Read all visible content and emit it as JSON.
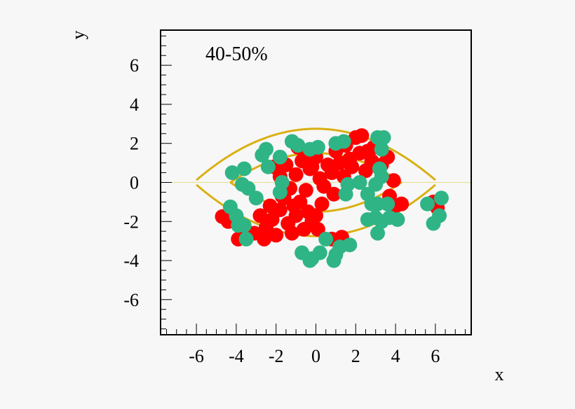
{
  "chart_data": {
    "type": "scatter",
    "annotation": "40-50%",
    "xlabel": "x",
    "ylabel": "y",
    "xlim": [
      -7.8,
      7.8
    ],
    "ylim": [
      -7.8,
      7.8
    ],
    "xticks": [
      -6,
      -4,
      -2,
      0,
      2,
      4,
      6
    ],
    "yticks": [
      -6,
      -4,
      -2,
      0,
      2,
      4,
      6
    ],
    "xtick_labels": [
      "-6",
      "-4",
      "-2",
      "0",
      "2",
      "4",
      "6"
    ],
    "ytick_labels": [
      "-6",
      "-4",
      "-2",
      "0",
      "2",
      "4",
      "6"
    ],
    "grid": false,
    "colors": {
      "red": "#ff0000",
      "green": "#2fb585",
      "curve": "#dab012",
      "baseline": "#e6e08a"
    },
    "series": [
      {
        "color": "#ff0000",
        "points": [
          [
            -4.7,
            -1.75
          ],
          [
            -4.4,
            -2.0
          ],
          [
            -3.9,
            -2.9
          ],
          [
            -3.5,
            -2.5
          ],
          [
            -3.1,
            -2.6
          ],
          [
            -2.8,
            -1.7
          ],
          [
            -2.5,
            -2.3
          ],
          [
            -2.6,
            -2.9
          ],
          [
            -2.2,
            -1.9
          ],
          [
            -2.0,
            -2.7
          ],
          [
            -1.8,
            -1.4
          ],
          [
            -1.6,
            -0.8
          ],
          [
            -1.4,
            -2.1
          ],
          [
            -1.2,
            -2.6
          ],
          [
            -1.0,
            -1.7
          ],
          [
            -0.8,
            -1.0
          ],
          [
            -0.6,
            -2.4
          ],
          [
            -0.4,
            -1.5
          ],
          [
            -0.2,
            -2.0
          ],
          [
            0.0,
            -1.7
          ],
          [
            0.1,
            -2.4
          ],
          [
            -1.8,
            0.3
          ],
          [
            -1.5,
            0.9
          ],
          [
            -1.3,
            -0.3
          ],
          [
            -1.0,
            0.4
          ],
          [
            -0.7,
            1.1
          ],
          [
            -0.5,
            -0.4
          ],
          [
            -0.3,
            0.7
          ],
          [
            0.0,
            1.3
          ],
          [
            0.2,
            0.2
          ],
          [
            0.4,
            -0.2
          ],
          [
            0.6,
            0.9
          ],
          [
            0.8,
            0.5
          ],
          [
            1.0,
            1.6
          ],
          [
            1.2,
            1.0
          ],
          [
            1.5,
            1.9
          ],
          [
            1.7,
            1.2
          ],
          [
            2.0,
            2.3
          ],
          [
            2.2,
            1.5
          ],
          [
            2.3,
            2.4
          ],
          [
            2.6,
            1.6
          ],
          [
            2.8,
            1.1
          ],
          [
            -0.9,
            1.8
          ],
          [
            -0.5,
            1.6
          ],
          [
            1.8,
            0.8
          ],
          [
            2.5,
            0.6
          ],
          [
            3.3,
            0.9
          ],
          [
            3.6,
            1.3
          ],
          [
            3.9,
            0.1
          ],
          [
            3.7,
            -0.7
          ],
          [
            4.0,
            -1.2
          ],
          [
            4.3,
            -1.1
          ],
          [
            -1.7,
            -0.7
          ],
          [
            -2.1,
            0.8
          ],
          [
            0.8,
            -2.9
          ],
          [
            1.3,
            -2.8
          ],
          [
            5.9,
            -1.0
          ],
          [
            6.1,
            -1.3
          ],
          [
            -0.2,
            0.8
          ],
          [
            0.9,
            -0.6
          ],
          [
            -1.1,
            -1.2
          ],
          [
            0.3,
            -1.1
          ],
          [
            1.4,
            0.3
          ],
          [
            -2.3,
            -1.2
          ],
          [
            2.9,
            1.8
          ]
        ]
      },
      {
        "color": "#2fb585",
        "points": [
          [
            -4.3,
            -1.25
          ],
          [
            -4.0,
            -1.7
          ],
          [
            -3.8,
            -2.1
          ],
          [
            -3.6,
            -2.2
          ],
          [
            -3.5,
            -2.9
          ],
          [
            -3.9,
            -2.2
          ],
          [
            -4.2,
            0.5
          ],
          [
            -3.6,
            0.7
          ],
          [
            -3.7,
            -0.1
          ],
          [
            -3.4,
            -0.3
          ],
          [
            -3.0,
            -0.8
          ],
          [
            -2.7,
            1.4
          ],
          [
            -2.5,
            1.7
          ],
          [
            -2.4,
            0.8
          ],
          [
            -1.8,
            1.3
          ],
          [
            -1.7,
            0.0
          ],
          [
            -1.8,
            -0.5
          ],
          [
            -1.2,
            2.1
          ],
          [
            -0.9,
            1.9
          ],
          [
            -0.3,
            1.7
          ],
          [
            0.1,
            1.8
          ],
          [
            1.0,
            2.0
          ],
          [
            1.4,
            2.1
          ],
          [
            3.1,
            2.3
          ],
          [
            3.4,
            2.3
          ],
          [
            3.3,
            1.7
          ],
          [
            3.2,
            0.7
          ],
          [
            3.3,
            0.3
          ],
          [
            3.0,
            -0.1
          ],
          [
            2.6,
            -0.6
          ],
          [
            2.8,
            -1.1
          ],
          [
            3.1,
            -1.1
          ],
          [
            3.6,
            -1.1
          ],
          [
            2.2,
            0.0
          ],
          [
            1.6,
            -0.1
          ],
          [
            1.5,
            -0.6
          ],
          [
            2.6,
            -1.9
          ],
          [
            3.0,
            -1.8
          ],
          [
            3.3,
            -2.0
          ],
          [
            3.7,
            -1.8
          ],
          [
            4.1,
            -1.9
          ],
          [
            3.1,
            -2.6
          ],
          [
            5.6,
            -1.1
          ],
          [
            5.9,
            -2.1
          ],
          [
            6.2,
            -1.7
          ],
          [
            6.3,
            -0.8
          ],
          [
            -0.7,
            -3.6
          ],
          [
            -0.2,
            -3.9
          ],
          [
            -0.3,
            -4.0
          ],
          [
            0.2,
            -3.6
          ],
          [
            0.5,
            -2.9
          ],
          [
            1.0,
            -3.7
          ],
          [
            1.2,
            -3.3
          ],
          [
            1.7,
            -3.2
          ],
          [
            0.9,
            -4.0
          ]
        ]
      }
    ],
    "curves": [
      {
        "color": "#dab012",
        "coef": -0.073,
        "x_range": [
          -6.0,
          6.0
        ],
        "offset": 2.75
      },
      {
        "color": "#dab012",
        "coef": 0.073,
        "x_range": [
          -6.0,
          6.0
        ],
        "offset": -2.75
      },
      {
        "color": "#dab012",
        "coef": -0.0815,
        "x_range": [
          -4.3,
          4.3
        ],
        "offset": 1.5
      },
      {
        "color": "#dab012",
        "coef": 0.0815,
        "x_range": [
          -4.3,
          4.3
        ],
        "offset": -1.5
      }
    ]
  }
}
